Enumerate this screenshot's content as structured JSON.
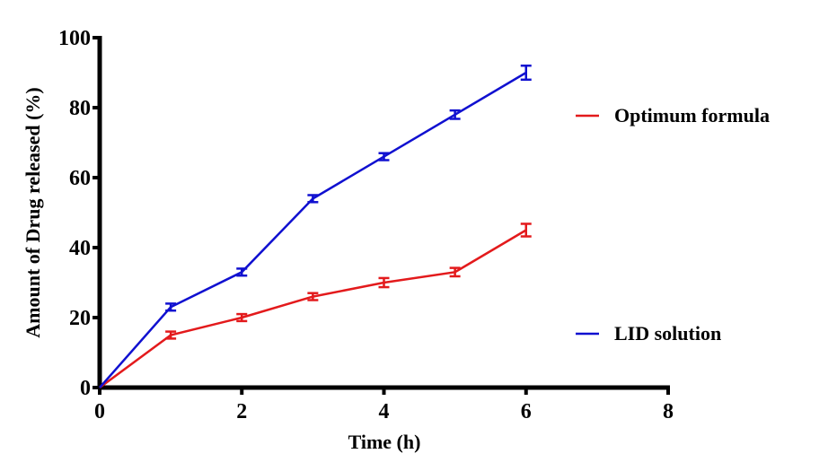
{
  "chart_data": {
    "type": "line",
    "title": "",
    "xlabel": "Time (h)",
    "ylabel": "Amount of Drug released (%)",
    "xlim": [
      0,
      8
    ],
    "ylim": [
      0,
      100
    ],
    "xticks": [
      0,
      2,
      4,
      6,
      8
    ],
    "yticks": [
      0,
      20,
      40,
      60,
      80,
      100
    ],
    "grid": false,
    "legend_position": "right",
    "x": [
      0,
      1,
      2,
      3,
      4,
      5,
      6
    ],
    "series": [
      {
        "name": "Optimum formula",
        "color": "#e31a1c",
        "values": [
          0,
          15,
          20,
          26,
          30,
          33,
          45
        ],
        "errors": [
          0,
          1,
          1,
          1,
          1.3,
          1.2,
          1.8
        ]
      },
      {
        "name": "LID solution",
        "color": "#1010d0",
        "values": [
          0,
          23,
          33,
          54,
          66,
          78,
          90
        ],
        "errors": [
          0,
          1,
          1,
          1,
          1,
          1.2,
          2
        ]
      }
    ]
  }
}
